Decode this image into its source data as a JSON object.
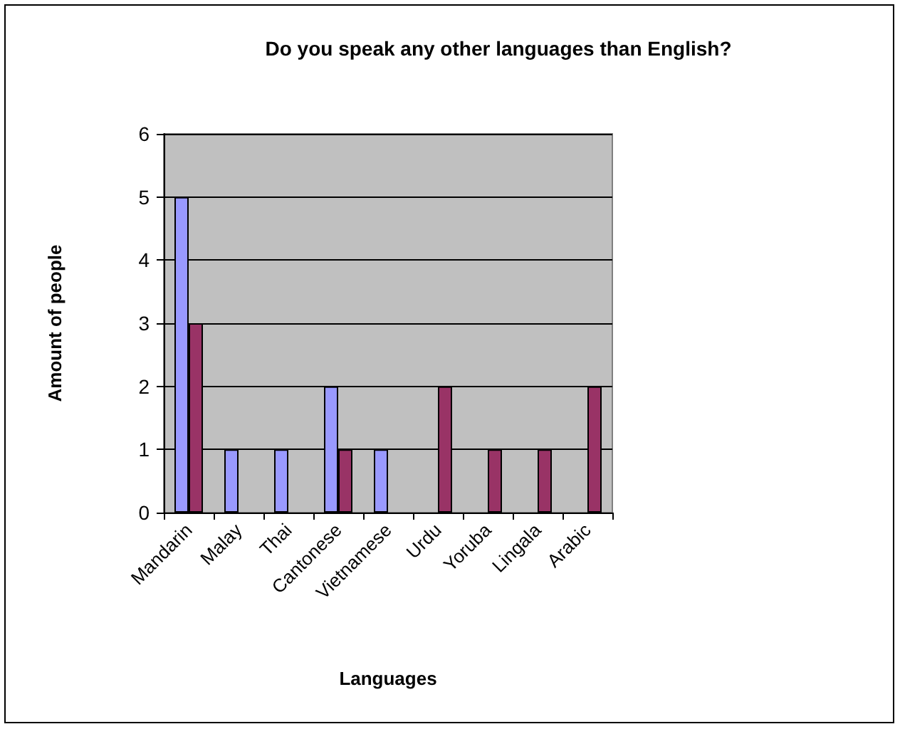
{
  "chart_data": {
    "type": "bar",
    "title": "Do you speak any other languages than English?",
    "xlabel": "Languages",
    "ylabel": "Amount of people",
    "categories": [
      "Mandarin",
      "Malay",
      "Thai",
      "Cantonese",
      "Vietnamese",
      "Urdu",
      "Yoruba",
      "Lingala",
      "Arabic"
    ],
    "series": [
      {
        "color": "#9999ff",
        "values": [
          5,
          1,
          1,
          2,
          1,
          null,
          null,
          null,
          null
        ]
      },
      {
        "color": "#993366",
        "values": [
          3,
          null,
          null,
          1,
          null,
          2,
          1,
          1,
          2
        ]
      }
    ],
    "ylim": [
      0,
      6
    ],
    "yticks": [
      0,
      1,
      2,
      3,
      4,
      5,
      6
    ],
    "grid": "y"
  }
}
